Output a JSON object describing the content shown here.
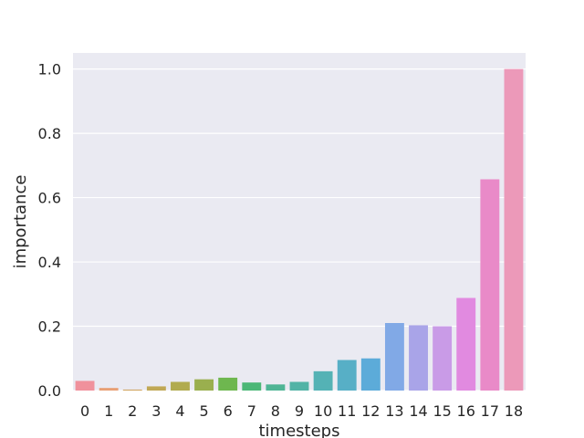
{
  "chart_data": {
    "type": "bar",
    "title": "",
    "xlabel": "timesteps",
    "ylabel": "importance",
    "categories": [
      "0",
      "1",
      "2",
      "3",
      "4",
      "5",
      "6",
      "7",
      "8",
      "9",
      "10",
      "11",
      "12",
      "13",
      "14",
      "15",
      "16",
      "17",
      "18"
    ],
    "values": [
      0.03,
      0.008,
      0.003,
      0.013,
      0.027,
      0.035,
      0.04,
      0.025,
      0.019,
      0.027,
      0.06,
      0.095,
      0.1,
      0.21,
      0.203,
      0.2,
      0.288,
      0.657,
      1.0
    ],
    "ylim": [
      0,
      1.05
    ],
    "yticks": [
      "0.0",
      "0.2",
      "0.4",
      "0.6",
      "0.8",
      "1.0"
    ],
    "grid": true,
    "colors": [
      "#f0919c",
      "#e89f74",
      "#d0a45f",
      "#c0a855",
      "#b1ab4f",
      "#9aaf4e",
      "#6eb74f",
      "#4cb777",
      "#4fb595",
      "#52b3a6",
      "#54b2b5",
      "#57afc6",
      "#5cabd9",
      "#81a9e6",
      "#a9a4e8",
      "#c99be7",
      "#e18ae0",
      "#e98ac8",
      "#ec99b9"
    ],
    "background": "#eaeaf2"
  }
}
